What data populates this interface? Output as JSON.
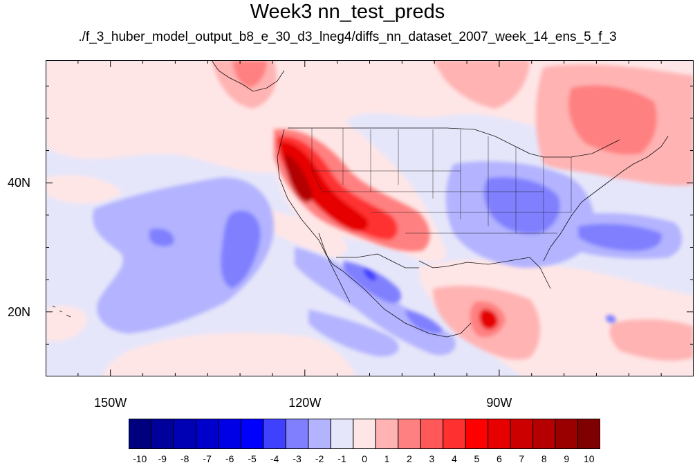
{
  "title": "Week3 nn_test_preds",
  "subtitle": "./f_3_huber_model_output_b8_e_30_d3_lneg4/diffs_nn_dataset_2007_week_14_ens_5_f_3",
  "map": {
    "lon_range": [
      -160,
      -60
    ],
    "lat_range": [
      10,
      59
    ],
    "lon_labels": [
      {
        "lon": -150,
        "text": "150W"
      },
      {
        "lon": -120,
        "text": "120W"
      },
      {
        "lon": -90,
        "text": "90W"
      }
    ],
    "lat_labels": [
      {
        "lat": 40,
        "text": "40N"
      },
      {
        "lat": 20,
        "text": "20N"
      }
    ],
    "background_color": "#e6e6fa"
  },
  "colorbar": {
    "labels": [
      "-10",
      "-9",
      "-8",
      "-7",
      "-6",
      "-5",
      "-4",
      "-3",
      "-2",
      "-1",
      "0",
      "1",
      "2",
      "3",
      "4",
      "5",
      "6",
      "7",
      "8",
      "9",
      "10"
    ],
    "colors": [
      "#00007e",
      "#00009b",
      "#0000b4",
      "#0000cd",
      "#0000e6",
      "#0000ff",
      "#4040ff",
      "#8080ff",
      "#b3b3ff",
      "#e6e6fa",
      "#ffe6e6",
      "#ffb3b3",
      "#ff8080",
      "#ff5858",
      "#ff3030",
      "#ff0000",
      "#e60000",
      "#cd0000",
      "#b40000",
      "#9b0000",
      "#7e0000"
    ]
  }
}
